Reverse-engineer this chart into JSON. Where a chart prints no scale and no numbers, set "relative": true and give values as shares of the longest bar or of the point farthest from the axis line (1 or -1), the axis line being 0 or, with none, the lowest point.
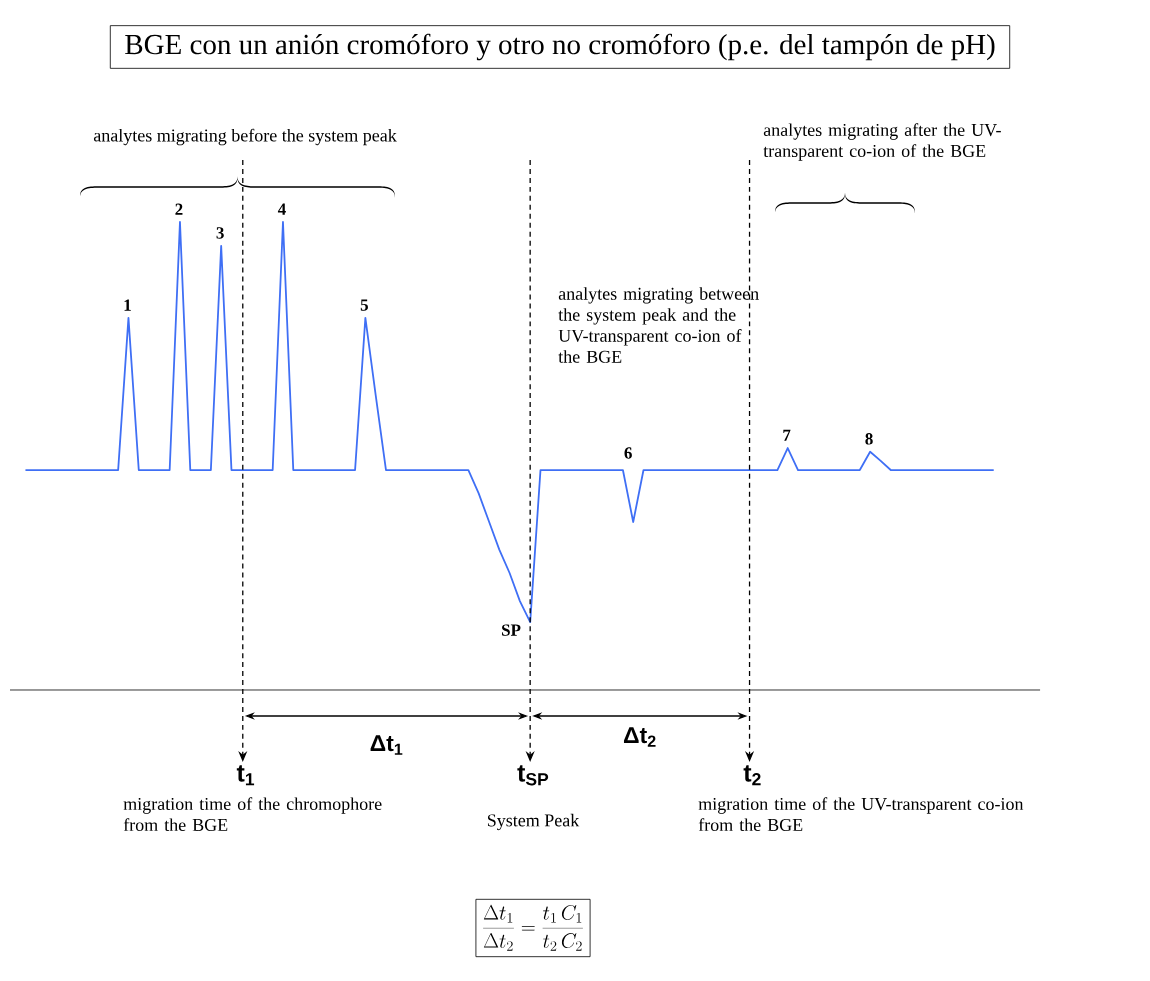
{
  "chart_data": {
    "type": "line",
    "relative": true,
    "title": "BGE con un anión cromóforo y otro no cromóforo (p.e. del tampón de pH)",
    "color": "#3f6ff5",
    "categories": [
      null,
      null,
      null,
      null,
      null,
      null,
      null,
      null,
      null,
      null,
      null,
      null,
      null,
      null,
      null,
      null,
      null,
      null,
      null,
      null,
      null,
      null,
      null,
      null,
      null,
      null,
      null,
      null,
      null,
      null,
      null,
      null,
      null,
      null,
      null,
      null,
      null,
      null,
      null,
      null,
      null,
      null,
      null,
      null,
      null,
      null,
      null,
      null,
      null,
      null,
      null,
      null,
      null,
      null,
      null,
      null,
      null,
      null,
      null,
      null,
      null,
      null,
      null,
      null,
      null,
      null,
      null,
      null,
      null,
      null,
      null,
      null,
      null,
      null,
      null,
      null,
      null,
      null,
      null,
      null,
      null,
      null,
      null,
      null,
      null,
      null,
      null,
      null,
      null,
      null,
      null,
      null,
      null,
      null,
      null
    ],
    "values": [
      0.47,
      0.47,
      0.47,
      0.47,
      0.47,
      0.47,
      0.47,
      0.47,
      0.47,
      0.47,
      0.795,
      0.47,
      0.47,
      0.47,
      0.47,
      1,
      0.47,
      0.47,
      0.47,
      0.949,
      0.47,
      0.47,
      0.47,
      0.47,
      0.47,
      1,
      0.47,
      0.47,
      0.47,
      0.47,
      0.47,
      0.47,
      0.47,
      0.795,
      0.63,
      0.47,
      0.47,
      0.47,
      0.47,
      0.47,
      0.47,
      0.47,
      0.47,
      0.47,
      0.42,
      0.36,
      0.3,
      0.25,
      0.19,
      0.145,
      0.47,
      0.47,
      0.47,
      0.47,
      0.47,
      0.47,
      0.47,
      0.47,
      0.47,
      0.359,
      0.47,
      0.47,
      0.47,
      0.47,
      0.47,
      0.47,
      0.47,
      0.47,
      0.47,
      0.47,
      0.47,
      0.47,
      0.47,
      0.47,
      0.517,
      0.47,
      0.47,
      0.47,
      0.47,
      0.47,
      0.47,
      0.47,
      0.509,
      0.49,
      0.47,
      0.47,
      0.47,
      0.47,
      0.47,
      0.47,
      0.47,
      0.47,
      0.47,
      0.47,
      0.47
    ],
    "annotations": [
      "analytes migrating before the system peak",
      "analytes migrating after the UV-transparent co-ion of the BGE",
      "analytes migrating between the system peak and the UV-transparent co-ion of the BGE",
      "migration time of the chromophore from the BGE",
      "System Peak",
      "migration time of the UV-transparent co-ion from the BGE",
      "Δt$_{1}$",
      "Δt$_{2}$",
      "\\frac{\\Delta t_{1}}{\\Delta t_{2}} = \\frac{t_{1}\\,C_{1}}{t_{2}\\,C_{2}}",
      "1",
      "2",
      "3",
      "4",
      "5",
      "SP",
      "6",
      "7",
      "8",
      "t$_{1}$",
      "t$_{SP}$",
      "t$_{2}$"
    ]
  }
}
